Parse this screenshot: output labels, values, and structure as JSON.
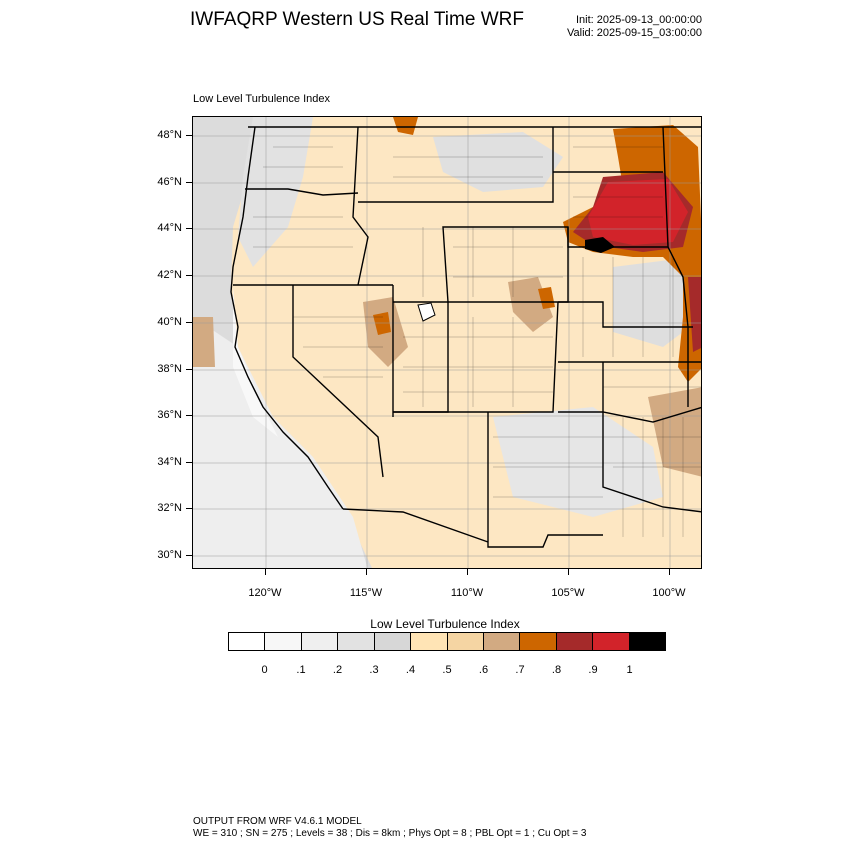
{
  "title": "IWFAQRP Western US Real Time WRF",
  "init_time": "Init: 2025-09-13_00:00:00",
  "valid_time": "Valid: 2025-09-15_03:00:00",
  "panel_title": "Low Level Turbulence Index",
  "map": {
    "lat_labels": [
      "48°N",
      "46°N",
      "44°N",
      "42°N",
      "40°N",
      "38°N",
      "36°N",
      "34°N",
      "32°N",
      "30°N"
    ],
    "lon_labels": [
      "120°W",
      "115°W",
      "110°W",
      "105°W",
      "100°W"
    ],
    "lat_values": [
      48,
      46,
      44,
      42,
      40,
      38,
      36,
      34,
      32,
      30
    ],
    "lon_values": [
      -120,
      -115,
      -110,
      -105,
      -100
    ]
  },
  "colorbar": {
    "title": "Low Level Turbulence Index",
    "labels": [
      "0",
      ".1",
      ".2",
      ".3",
      ".4",
      ".5",
      ".6",
      ".7",
      ".8",
      ".9",
      "1"
    ],
    "colors": [
      "#ffffff",
      "#f7f7f7",
      "#efefef",
      "#e2e2e2",
      "#d7d7d7",
      "#ffe4b5",
      "#f5d5a3",
      "#d2aa82",
      "#cd6600",
      "#a52a2a",
      "#d2232a",
      "#000000"
    ]
  },
  "model_info": {
    "line1": "OUTPUT FROM WRF V4.6.1 MODEL",
    "line2": "WE = 310 ; SN = 275 ; Levels = 38 ; Dis = 8km ; Phys Opt = 8 ; PBL Opt = 1 ; Cu Opt = 3"
  }
}
